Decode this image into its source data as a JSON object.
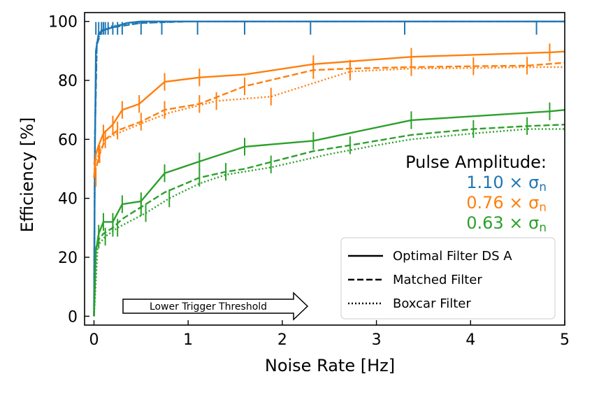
{
  "chart_data": {
    "type": "line",
    "xlabel": "Noise Rate [Hz]",
    "ylabel": "Efficiency [%]",
    "xlim": [
      -0.1,
      5.0
    ],
    "ylim": [
      -3,
      103
    ],
    "xticks": [
      0,
      1,
      2,
      3,
      4,
      5
    ],
    "yticks": [
      0,
      20,
      40,
      60,
      80,
      100
    ],
    "grid": false,
    "series": [
      {
        "name": "1.10 optimal",
        "amplitude": "1.10",
        "filter": "Optimal Filter DS A",
        "color": "#1f77b4",
        "x": [
          0,
          0.01,
          0.02,
          0.05,
          0.1,
          0.2,
          0.35,
          0.5,
          1,
          2,
          3,
          4,
          5
        ],
        "y": [
          0,
          55,
          90,
          96,
          97,
          98,
          99.5,
          100,
          100,
          100,
          100,
          100,
          100
        ],
        "err_x": [
          0.02,
          0.05,
          0.08,
          0.1,
          0.12,
          0.15,
          0.2,
          0.25,
          0.3,
          0.5,
          0.72,
          1.1,
          1.6,
          2.3,
          3.3,
          4.7
        ]
      },
      {
        "name": "1.10 matched",
        "amplitude": "1.10",
        "filter": "Matched Filter",
        "color": "#1f77b4",
        "x": [
          0,
          0.01,
          0.03,
          0.08,
          0.2,
          0.5,
          1,
          2,
          3,
          4,
          5
        ],
        "y": [
          0,
          60,
          92,
          97,
          98,
          99.5,
          100,
          100,
          100,
          100,
          100
        ],
        "err_x": []
      },
      {
        "name": "1.10 boxcar",
        "amplitude": "1.10",
        "filter": "Boxcar Filter",
        "color": "#1f77b4",
        "x": [
          0,
          0.01,
          0.03,
          0.08,
          0.2,
          0.5,
          1,
          2,
          3,
          4,
          5
        ],
        "y": [
          0,
          62,
          93,
          97,
          98.5,
          99.5,
          100,
          100,
          100,
          100,
          100
        ],
        "err_x": []
      },
      {
        "name": "0.76 optimal",
        "amplitude": "0.76",
        "filter": "Optimal Filter DS A",
        "color": "#ff7f0e",
        "x": [
          0,
          0.02,
          0.05,
          0.1,
          0.2,
          0.3,
          0.48,
          0.75,
          1.12,
          1.6,
          2.33,
          3.37,
          4.84,
          5.0
        ],
        "y": [
          47,
          55,
          58,
          62,
          65,
          70,
          72,
          79.5,
          81,
          82,
          85.5,
          88,
          89.5,
          89.8
        ],
        "err_x": [
          0.02,
          0.05,
          0.1,
          0.2,
          0.3,
          0.48,
          0.75,
          1.12,
          2.33,
          3.37,
          4.84
        ],
        "err_y": [
          47,
          55,
          62,
          65,
          70,
          72,
          79.5,
          81,
          85.5,
          88,
          89.5
        ]
      },
      {
        "name": "0.76 matched",
        "amplitude": "0.76",
        "filter": "Matched Filter",
        "color": "#ff7f0e",
        "x": [
          0,
          0.02,
          0.06,
          0.12,
          0.25,
          0.5,
          0.75,
          1.12,
          1.6,
          2.33,
          2.72,
          3.37,
          4.03,
          4.6,
          5.0
        ],
        "y": [
          52,
          50,
          55,
          60,
          63,
          66,
          70,
          72,
          78,
          83.5,
          84,
          84.5,
          84.8,
          85,
          86
        ],
        "err_x": [
          0.06,
          0.12,
          0.25,
          0.5,
          0.75,
          1.12,
          1.6,
          2.33,
          2.72,
          3.37,
          4.03,
          4.6
        ],
        "err_y": [
          55,
          60,
          63,
          66,
          70,
          72,
          78,
          83.5,
          84,
          84.5,
          84.8,
          85
        ]
      },
      {
        "name": "0.76 boxcar",
        "amplitude": "0.76",
        "filter": "Boxcar Filter",
        "color": "#ff7f0e",
        "x": [
          0,
          0.04,
          0.12,
          0.25,
          0.55,
          0.8,
          1.3,
          1.88,
          2.72,
          3.37,
          4.03,
          4.6,
          5.0
        ],
        "y": [
          52,
          54,
          60,
          62,
          66,
          69,
          73,
          74.5,
          83,
          84,
          84.2,
          84.5,
          84.5
        ],
        "err_x": [
          1.3,
          1.88,
          2.72
        ],
        "err_y": [
          73,
          74.5,
          83
        ]
      },
      {
        "name": "0.63 optimal",
        "amplitude": "0.63",
        "filter": "Optimal Filter DS A",
        "color": "#2ca02c",
        "x": [
          0,
          0.02,
          0.05,
          0.1,
          0.2,
          0.3,
          0.5,
          0.75,
          1.12,
          1.6,
          2.33,
          3.37,
          4.84,
          5.0
        ],
        "y": [
          0,
          22,
          28,
          32,
          32,
          38,
          39,
          48.5,
          52.5,
          57.5,
          59.5,
          66.5,
          69.5,
          70
        ],
        "err_x": [
          0.05,
          0.1,
          0.2,
          0.3,
          0.5,
          0.75,
          1.12,
          1.6,
          2.33,
          3.37,
          4.84
        ],
        "err_y": [
          28,
          32,
          32,
          38,
          39,
          48.5,
          52.5,
          57.5,
          59.5,
          66.5,
          69.5
        ]
      },
      {
        "name": "0.63 matched",
        "amplitude": "0.63",
        "filter": "Matched Filter",
        "color": "#2ca02c",
        "x": [
          0,
          0.02,
          0.05,
          0.1,
          0.2,
          0.3,
          0.5,
          0.75,
          1.12,
          1.4,
          1.6,
          2.33,
          2.72,
          3.37,
          4.03,
          4.6,
          5.0
        ],
        "y": [
          0,
          23,
          26,
          28,
          30,
          33,
          37,
          42,
          47,
          49,
          50,
          56,
          58,
          61.5,
          63.5,
          64.5,
          65
        ],
        "err_x": [
          0.05,
          0.2,
          0.5,
          1.12,
          1.4,
          1.88,
          2.72,
          4.03,
          4.6
        ],
        "err_y": [
          26,
          30,
          37,
          47,
          49,
          51.5,
          58,
          63.5,
          64.5
        ]
      },
      {
        "name": "0.63 boxcar",
        "amplitude": "0.63",
        "filter": "Boxcar Filter",
        "color": "#2ca02c",
        "x": [
          0,
          0.04,
          0.12,
          0.25,
          0.55,
          0.8,
          1.12,
          1.4,
          1.88,
          2.5,
          3.0,
          3.37,
          4.03,
          4.6,
          5.0
        ],
        "y": [
          0,
          24,
          27,
          30,
          35,
          40,
          45,
          48,
          50.5,
          55,
          58,
          60,
          62,
          63.5,
          63.5
        ],
        "err_x": [
          0.12,
          0.25,
          0.55,
          0.8
        ],
        "err_y": [
          27,
          30,
          35,
          40
        ]
      }
    ],
    "legend": {
      "location": "bottom-right",
      "entries": [
        {
          "label": "Optimal Filter DS A",
          "style": "solid"
        },
        {
          "label": "Matched Filter",
          "style": "dashed"
        },
        {
          "label": "Boxcar Filter",
          "style": "dotted"
        }
      ]
    },
    "annotation": {
      "title": "Pulse Amplitude:",
      "entries": [
        {
          "value": "1.10",
          "symbol": "× σ",
          "subscript": "n",
          "color": "#1f77b4"
        },
        {
          "value": "0.76",
          "symbol": "× σ",
          "subscript": "n",
          "color": "#ff7f0e"
        },
        {
          "value": "0.63",
          "symbol": "× σ",
          "subscript": "n",
          "color": "#2ca02c"
        }
      ]
    },
    "arrow_label": "Lower Trigger Threshold"
  }
}
